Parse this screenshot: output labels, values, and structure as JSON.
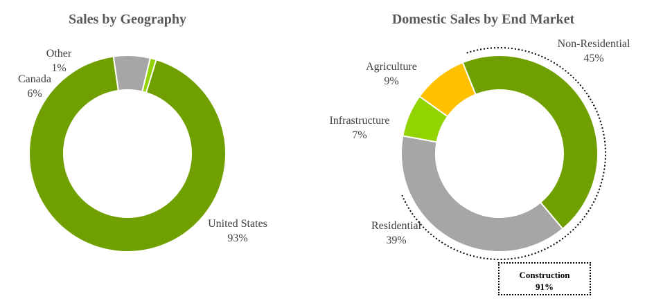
{
  "chart_data": [
    {
      "type": "pie",
      "style": "donut",
      "title": "Sales by Geography",
      "slices": [
        {
          "label": "United States",
          "value": 93,
          "value_label": "93%",
          "color": "#70A000"
        },
        {
          "label": "Canada",
          "value": 6,
          "value_label": "6%",
          "color": "#A6A6A6"
        },
        {
          "label": "Other",
          "value": 1,
          "value_label": "1%",
          "color": "#92D400"
        }
      ]
    },
    {
      "type": "pie",
      "style": "donut",
      "title": "Domestic Sales by End Market",
      "slices": [
        {
          "label": "Non-Residential",
          "value": 45,
          "value_label": "45%",
          "color": "#70A000"
        },
        {
          "label": "Residential",
          "value": 39,
          "value_label": "39%",
          "color": "#A6A6A6"
        },
        {
          "label": "Infrastructure",
          "value": 7,
          "value_label": "7%",
          "color": "#92D400"
        },
        {
          "label": "Agriculture",
          "value": 9,
          "value_label": "9%",
          "color": "#FFC000"
        }
      ],
      "annotation": {
        "label": "Construction",
        "value_label": "91%"
      }
    }
  ]
}
